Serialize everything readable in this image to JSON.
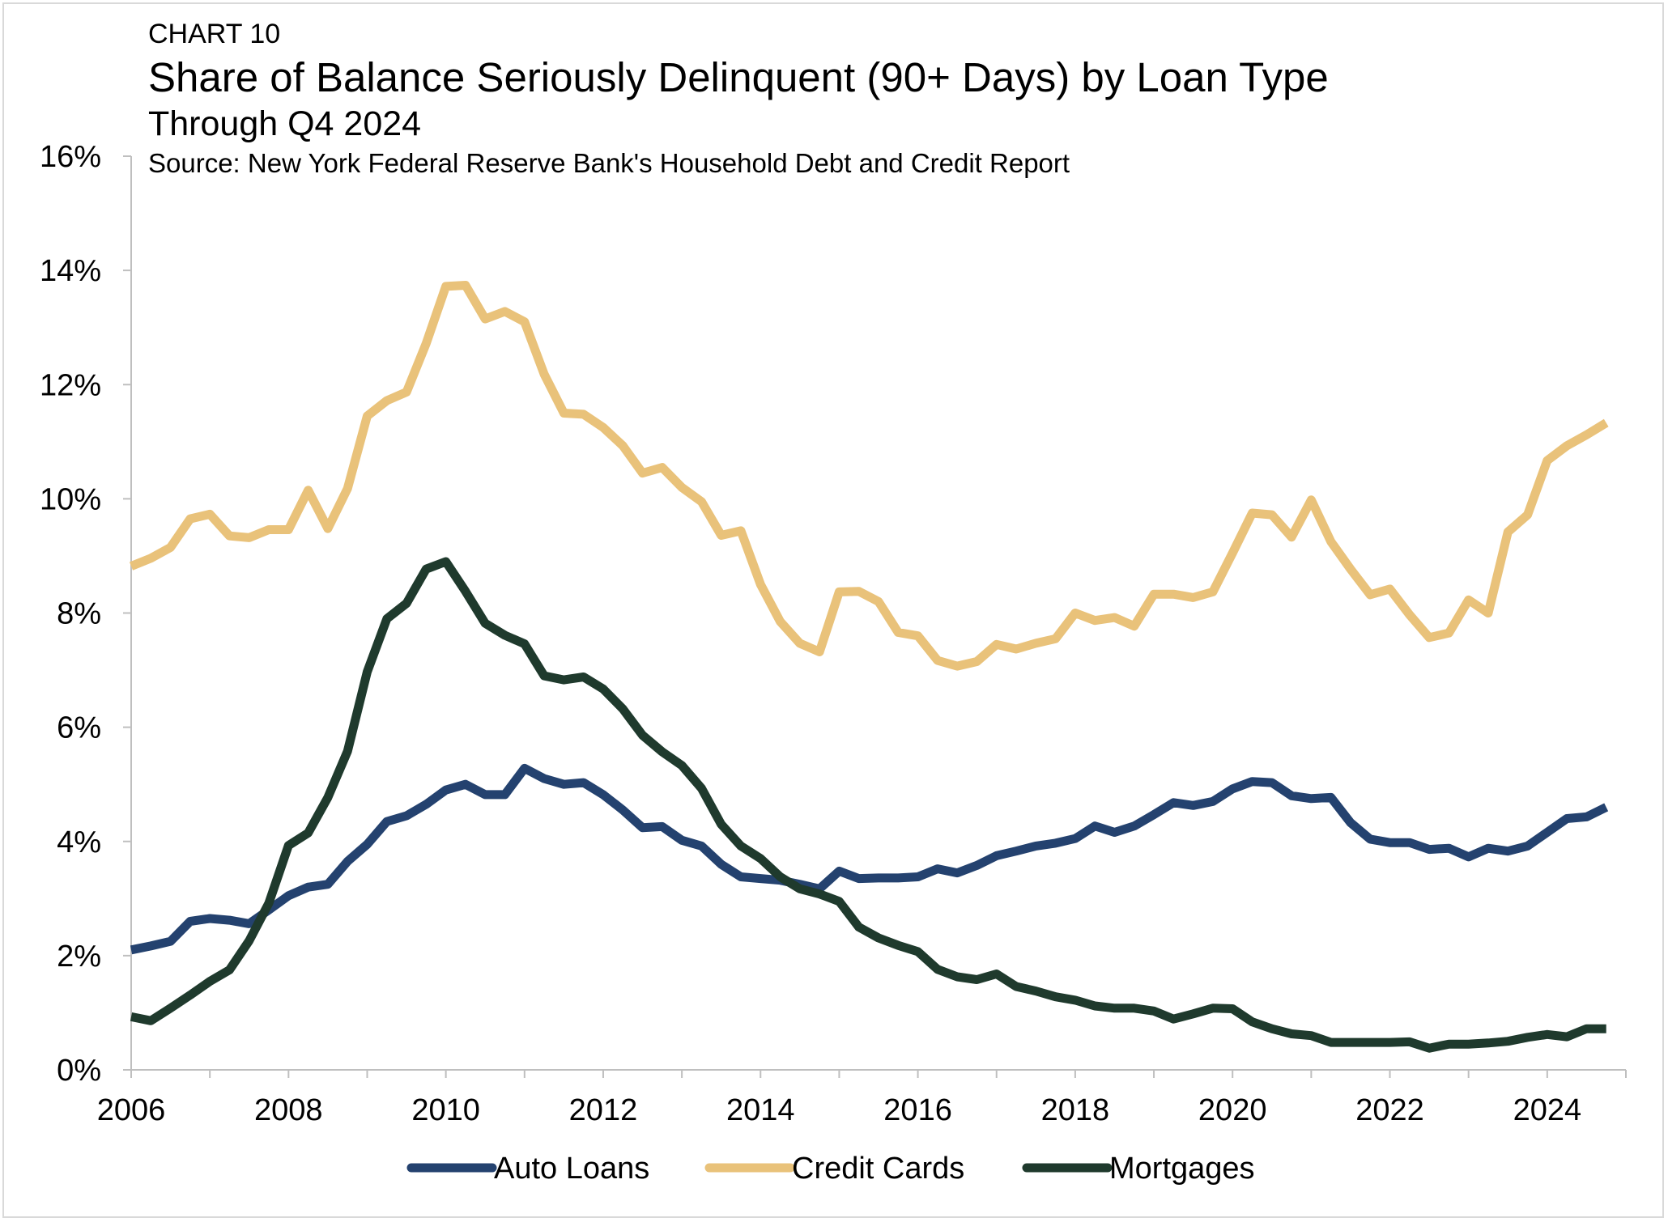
{
  "header": {
    "label": "CHART 10",
    "title": "Share of Balance Seriously Delinquent (90+ Days) by Loan Type",
    "subtitle": "Through Q4 2024",
    "source": "Source: New York Federal Reserve Bank's Household Debt and Credit Report"
  },
  "colors": {
    "auto": "#24426f",
    "credit": "#e9c27a",
    "mortgage": "#1f3a2d",
    "axis": "#bfbfbf"
  },
  "chart_data": {
    "type": "line",
    "title": "Share of Balance Seriously Delinquent (90+ Days) by Loan Type",
    "subtitle": "Through Q4 2024",
    "xlabel": "",
    "ylabel": "",
    "x_start": "2006-Q1",
    "x_frequency": "quarterly",
    "xlim": [
      2006,
      2025
    ],
    "ylim": [
      0,
      16
    ],
    "x_ticks": [
      "2006",
      "2008",
      "2010",
      "2012",
      "2014",
      "2016",
      "2018",
      "2020",
      "2022",
      "2024"
    ],
    "y_ticks": [
      "0%",
      "2%",
      "4%",
      "6%",
      "8%",
      "10%",
      "12%",
      "14%",
      "16%"
    ],
    "grid": false,
    "legend_position": "bottom",
    "series": [
      {
        "name": "Auto Loans",
        "color": "#24426f",
        "values": [
          2.1,
          2.17,
          2.25,
          2.6,
          2.65,
          2.62,
          2.56,
          2.8,
          3.05,
          3.2,
          3.25,
          3.65,
          3.95,
          4.35,
          4.45,
          4.65,
          4.9,
          5.0,
          4.82,
          4.82,
          5.28,
          5.1,
          5.0,
          5.03,
          4.82,
          4.55,
          4.24,
          4.26,
          4.02,
          3.92,
          3.6,
          3.38,
          3.35,
          3.32,
          3.25,
          3.17,
          3.48,
          3.35,
          3.36,
          3.36,
          3.38,
          3.52,
          3.45,
          3.58,
          3.75,
          3.83,
          3.92,
          3.97,
          4.05,
          4.27,
          4.16,
          4.27,
          4.47,
          4.68,
          4.63,
          4.7,
          4.92,
          5.05,
          5.03,
          4.8,
          4.75,
          4.77,
          4.33,
          4.04,
          3.98,
          3.98,
          3.86,
          3.88,
          3.73,
          3.88,
          3.83,
          3.92,
          4.16,
          4.4,
          4.43,
          4.6
        ]
      },
      {
        "name": "Credit Cards",
        "color": "#e9c27a",
        "values": [
          8.82,
          8.96,
          9.15,
          9.65,
          9.73,
          9.35,
          9.32,
          9.46,
          9.46,
          10.15,
          9.48,
          10.18,
          11.45,
          11.72,
          11.87,
          12.72,
          13.72,
          13.74,
          13.15,
          13.28,
          13.1,
          12.18,
          11.5,
          11.48,
          11.25,
          10.93,
          10.45,
          10.55,
          10.2,
          9.95,
          9.36,
          9.44,
          8.5,
          7.85,
          7.47,
          7.32,
          8.37,
          8.38,
          8.2,
          7.66,
          7.6,
          7.17,
          7.07,
          7.15,
          7.45,
          7.37,
          7.47,
          7.55,
          8.0,
          7.87,
          7.92,
          7.77,
          8.33,
          8.33,
          8.27,
          8.37,
          9.05,
          9.75,
          9.72,
          9.33,
          9.98,
          9.25,
          8.77,
          8.32,
          8.42,
          7.97,
          7.57,
          7.65,
          8.23,
          8.0,
          9.42,
          9.72,
          10.67,
          10.93,
          11.12,
          11.33
        ]
      },
      {
        "name": "Mortgages",
        "color": "#1f3a2d",
        "values": [
          0.93,
          0.86,
          1.08,
          1.31,
          1.55,
          1.75,
          2.26,
          2.92,
          3.93,
          4.15,
          4.77,
          5.58,
          6.97,
          7.9,
          8.17,
          8.77,
          8.9,
          8.38,
          7.82,
          7.61,
          7.46,
          6.9,
          6.83,
          6.88,
          6.67,
          6.32,
          5.86,
          5.57,
          5.33,
          4.93,
          4.3,
          3.92,
          3.7,
          3.38,
          3.17,
          3.08,
          2.95,
          2.5,
          2.31,
          2.18,
          2.07,
          1.76,
          1.63,
          1.58,
          1.68,
          1.46,
          1.38,
          1.28,
          1.22,
          1.12,
          1.08,
          1.08,
          1.03,
          0.89,
          0.98,
          1.08,
          1.07,
          0.84,
          0.72,
          0.63,
          0.6,
          0.48,
          0.48,
          0.48,
          0.48,
          0.49,
          0.38,
          0.45,
          0.45,
          0.47,
          0.5,
          0.57,
          0.62,
          0.58,
          0.72,
          0.72
        ]
      }
    ]
  }
}
